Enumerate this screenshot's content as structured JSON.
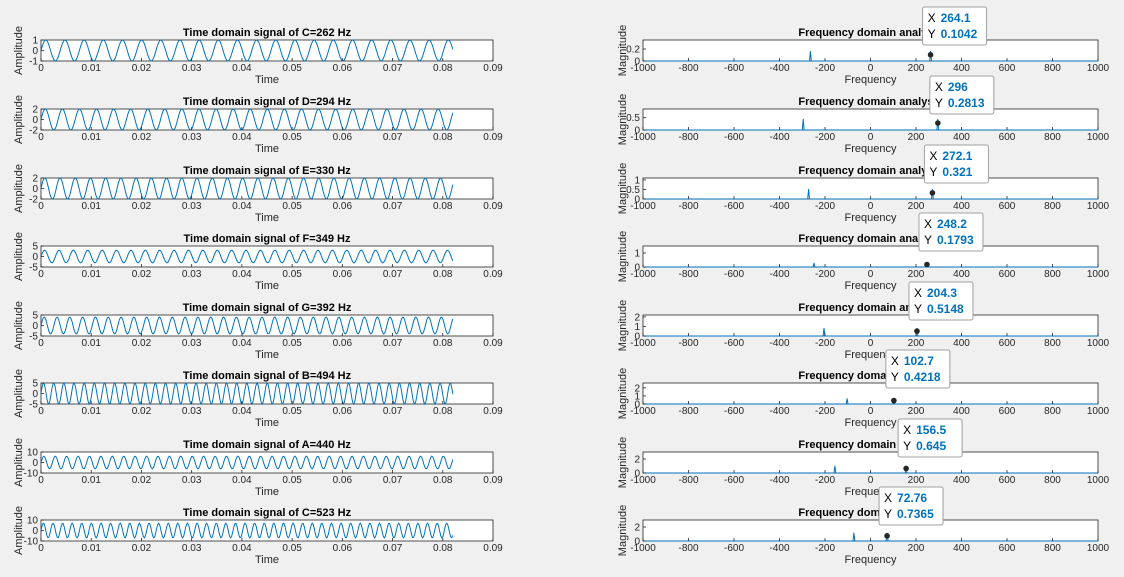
{
  "figure": {
    "background": "#f0f0f0",
    "line_color": "#0072bd"
  },
  "chart_data": [
    {
      "type": "line",
      "title": "Time domain signal of C=262 Hz",
      "xlabel": "Time",
      "ylabel": "Amplitude",
      "xlim": [
        0,
        0.09
      ],
      "ylim": [
        -1,
        1
      ],
      "xticks": [
        "0",
        "0.01",
        "0.02",
        "0.03",
        "0.04",
        "0.05",
        "0.06",
        "0.07",
        "0.08",
        "0.09"
      ],
      "yticks": [
        "1",
        "0",
        "-1"
      ],
      "amplitude": 1,
      "frequency_hz": 262,
      "sample_rate_hz": 500,
      "x_end": 0.082
    },
    {
      "type": "line",
      "title": "Frequency domain analysis",
      "xlabel": "Frequency",
      "ylabel": "Magnitude",
      "xlim": [
        -1000,
        1000
      ],
      "ylim": [
        0,
        0.35
      ],
      "xticks": [
        "-1000",
        "-800",
        "-600",
        "-400",
        "-200",
        "0",
        "200",
        "400",
        "600",
        "800",
        "1000"
      ],
      "yticks": [
        "0.2",
        "0"
      ],
      "peaks": [
        {
          "x": -264.1,
          "y": 0.1042
        },
        {
          "x": 264.1,
          "y": 0.1042
        }
      ],
      "datatip": {
        "x": "264.1",
        "y": "0.1042"
      }
    },
    {
      "type": "line",
      "title": "Time domain signal of D=294 Hz",
      "xlabel": "Time",
      "ylabel": "Amplitude",
      "xlim": [
        0,
        0.09
      ],
      "ylim": [
        -2,
        2
      ],
      "xticks": [
        "0",
        "0.01",
        "0.02",
        "0.03",
        "0.04",
        "0.05",
        "0.06",
        "0.07",
        "0.08",
        "0.09"
      ],
      "yticks": [
        "2",
        "0",
        "-2"
      ],
      "amplitude": 2,
      "frequency_hz": 294,
      "sample_rate_hz": 500,
      "x_end": 0.082
    },
    {
      "type": "line",
      "title": "Frequency domain analysis",
      "xlabel": "Frequency",
      "ylabel": "Magnitude",
      "xlim": [
        -1000,
        1000
      ],
      "ylim": [
        0,
        0.85
      ],
      "xticks": [
        "-1000",
        "-800",
        "-600",
        "-400",
        "-200",
        "0",
        "200",
        "400",
        "600",
        "800",
        "1000"
      ],
      "yticks": [
        "0.5",
        "0"
      ],
      "peaks": [
        {
          "x": -296,
          "y": 0.2813
        },
        {
          "x": 296,
          "y": 0.2813
        }
      ],
      "datatip": {
        "x": "296",
        "y": "0.2813"
      }
    },
    {
      "type": "line",
      "title": "Time domain signal of E=330 Hz",
      "xlabel": "Time",
      "ylabel": "Amplitude",
      "xlim": [
        0,
        0.09
      ],
      "ylim": [
        -2,
        2
      ],
      "xticks": [
        "0",
        "0.01",
        "0.02",
        "0.03",
        "0.04",
        "0.05",
        "0.06",
        "0.07",
        "0.08",
        "0.09"
      ],
      "yticks": [
        "2",
        "0",
        "-2"
      ],
      "amplitude": 2,
      "frequency_hz": 330,
      "sample_rate_hz": 500,
      "x_end": 0.082
    },
    {
      "type": "line",
      "title": "Frequency domain analysis",
      "xlabel": "Frequency",
      "ylabel": "Magnitude",
      "xlim": [
        -1000,
        1000
      ],
      "ylim": [
        0,
        1.1
      ],
      "xticks": [
        "-1000",
        "-800",
        "-600",
        "-400",
        "-200",
        "0",
        "200",
        "400",
        "600",
        "800",
        "1000"
      ],
      "yticks": [
        "1",
        "0.5",
        "0"
      ],
      "peaks": [
        {
          "x": -272.1,
          "y": 0.321
        },
        {
          "x": 272.1,
          "y": 0.321
        }
      ],
      "datatip": {
        "x": "272.1",
        "y": "0.321"
      }
    },
    {
      "type": "line",
      "title": "Time domain signal of F=349 Hz",
      "xlabel": "Time",
      "ylabel": "Amplitude",
      "xlim": [
        0,
        0.09
      ],
      "ylim": [
        -5,
        5
      ],
      "xticks": [
        "0",
        "0.01",
        "0.02",
        "0.03",
        "0.04",
        "0.05",
        "0.06",
        "0.07",
        "0.08",
        "0.09"
      ],
      "yticks": [
        "5",
        "0",
        "-5"
      ],
      "amplitude": 3,
      "frequency_hz": 349,
      "sample_rate_hz": 500,
      "x_end": 0.082
    },
    {
      "type": "line",
      "title": "Frequency domain analysis",
      "xlabel": "Frequency",
      "ylabel": "Magnitude",
      "xlim": [
        -1000,
        1000
      ],
      "ylim": [
        0,
        1.5
      ],
      "xticks": [
        "-1000",
        "-800",
        "-600",
        "-400",
        "-200",
        "0",
        "200",
        "400",
        "600",
        "800",
        "1000"
      ],
      "yticks": [
        "1",
        "0"
      ],
      "peaks": [
        {
          "x": -248.2,
          "y": 0.1793
        },
        {
          "x": 248.2,
          "y": 0.1793
        }
      ],
      "datatip": {
        "x": "248.2",
        "y": "0.1793"
      }
    },
    {
      "type": "line",
      "title": "Time domain signal of G=392 Hz",
      "xlabel": "Time",
      "ylabel": "Amplitude",
      "xlim": [
        0,
        0.09
      ],
      "ylim": [
        -5,
        5
      ],
      "xticks": [
        "0",
        "0.01",
        "0.02",
        "0.03",
        "0.04",
        "0.05",
        "0.06",
        "0.07",
        "0.08",
        "0.09"
      ],
      "yticks": [
        "5",
        "0",
        "-5"
      ],
      "amplitude": 4,
      "frequency_hz": 392,
      "sample_rate_hz": 500,
      "x_end": 0.082
    },
    {
      "type": "line",
      "title": "Frequency domain analysis",
      "xlabel": "Frequency",
      "ylabel": "Magnitude",
      "xlim": [
        -1000,
        1000
      ],
      "ylim": [
        0,
        2.2
      ],
      "xticks": [
        "-1000",
        "-800",
        "-600",
        "-400",
        "-200",
        "0",
        "200",
        "400",
        "600",
        "800",
        "1000"
      ],
      "yticks": [
        "2",
        "1",
        "0"
      ],
      "peaks": [
        {
          "x": -204.3,
          "y": 0.5148
        },
        {
          "x": 204.3,
          "y": 0.5148
        }
      ],
      "datatip": {
        "x": "204.3",
        "y": "0.5148"
      }
    },
    {
      "type": "line",
      "title": "Time domain signal of B=494 Hz",
      "xlabel": "Time",
      "ylabel": "Amplitude",
      "xlim": [
        0,
        0.09
      ],
      "ylim": [
        -5,
        5
      ],
      "xticks": [
        "0",
        "0.01",
        "0.02",
        "0.03",
        "0.04",
        "0.05",
        "0.06",
        "0.07",
        "0.08",
        "0.09"
      ],
      "yticks": [
        "5",
        "0",
        "-5"
      ],
      "amplitude": 5,
      "frequency_hz": 494,
      "sample_rate_hz": 500,
      "x_end": 0.082
    },
    {
      "type": "line",
      "title": "Frequency domain analysis",
      "xlabel": "Frequency",
      "ylabel": "Magnitude",
      "xlim": [
        -1000,
        1000
      ],
      "ylim": [
        0,
        2.6
      ],
      "xticks": [
        "-1000",
        "-800",
        "-600",
        "-400",
        "-200",
        "0",
        "200",
        "400",
        "600",
        "800",
        "1000"
      ],
      "yticks": [
        "2",
        "1",
        "0"
      ],
      "peaks": [
        {
          "x": -102.7,
          "y": 0.4218
        },
        {
          "x": 102.7,
          "y": 0.4218
        }
      ],
      "datatip": {
        "x": "102.7",
        "y": "0.4218"
      }
    },
    {
      "type": "line",
      "title": "Time domain signal of A=440 Hz",
      "xlabel": "Time",
      "ylabel": "Amplitude",
      "xlim": [
        0,
        0.09
      ],
      "ylim": [
        -10,
        10
      ],
      "xticks": [
        "0",
        "0.01",
        "0.02",
        "0.03",
        "0.04",
        "0.05",
        "0.06",
        "0.07",
        "0.08",
        "0.09"
      ],
      "yticks": [
        "10",
        "0",
        "-10"
      ],
      "amplitude": 6,
      "frequency_hz": 440,
      "sample_rate_hz": 500,
      "x_end": 0.082
    },
    {
      "type": "line",
      "title": "Frequency domain analysis",
      "xlabel": "Frequency",
      "ylabel": "Magnitude",
      "xlim": [
        -1000,
        1000
      ],
      "ylim": [
        0,
        3
      ],
      "xticks": [
        "-1000",
        "-800",
        "-600",
        "-400",
        "-200",
        "0",
        "200",
        "400",
        "600",
        "800",
        "1000"
      ],
      "yticks": [
        "2",
        "0"
      ],
      "peaks": [
        {
          "x": -156.5,
          "y": 0.645
        },
        {
          "x": 156.5,
          "y": 0.645
        }
      ],
      "datatip": {
        "x": "156.5",
        "y": "0.645"
      }
    },
    {
      "type": "line",
      "title": "Time domain signal of C=523 Hz",
      "xlabel": "Time",
      "ylabel": "Amplitude",
      "xlim": [
        0,
        0.09
      ],
      "ylim": [
        -10,
        10
      ],
      "xticks": [
        "0",
        "0.01",
        "0.02",
        "0.03",
        "0.04",
        "0.05",
        "0.06",
        "0.07",
        "0.08",
        "0.09"
      ],
      "yticks": [
        "10",
        "0",
        "-10"
      ],
      "amplitude": 7,
      "frequency_hz": 523,
      "sample_rate_hz": 500,
      "x_end": 0.082
    },
    {
      "type": "line",
      "title": "Frequency domain analysis",
      "xlabel": "Frequency",
      "ylabel": "Magnitude",
      "xlim": [
        -1000,
        1000
      ],
      "ylim": [
        0,
        3
      ],
      "xticks": [
        "-1000",
        "-800",
        "-600",
        "-400",
        "-200",
        "0",
        "200",
        "400",
        "600",
        "800",
        "1000"
      ],
      "yticks": [
        "2",
        "0"
      ],
      "peaks": [
        {
          "x": -72.76,
          "y": 0.7365
        },
        {
          "x": 72.76,
          "y": 0.7365
        }
      ],
      "datatip": {
        "x": "72.76",
        "y": "0.7365"
      }
    }
  ]
}
